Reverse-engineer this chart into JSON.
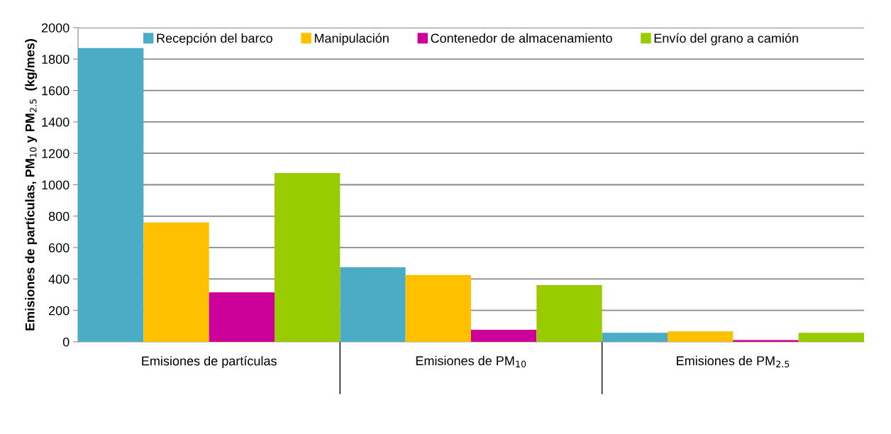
{
  "chart_data": {
    "type": "bar",
    "ylabel": "Emisiones de partículas, PM$_{10}$ y PM$_{2.5}$  (kg/mes)",
    "categories": [
      "Emisiones de partículas",
      "Emisiones de PM$_{10}$",
      "Emisiones de PM$_{2.5}$"
    ],
    "series": [
      {
        "name": "Recepción del barco",
        "color": "#4bacc6",
        "values": [
          1870,
          475,
          58
        ]
      },
      {
        "name": "Manipulación",
        "color": "#ffc000",
        "values": [
          760,
          425,
          67
        ]
      },
      {
        "name": "Contenedor de almacenamiento",
        "color": "#cc0099",
        "values": [
          315,
          77,
          11
        ]
      },
      {
        "name": "Envío del grano a camión",
        "color": "#99cc00",
        "values": [
          1075,
          361,
          57
        ]
      }
    ],
    "ylim": [
      0,
      2000
    ],
    "yticks": [
      0,
      200,
      400,
      600,
      800,
      1000,
      1200,
      1400,
      1600,
      1800,
      2000
    ],
    "grid": "y",
    "legend": "top"
  }
}
